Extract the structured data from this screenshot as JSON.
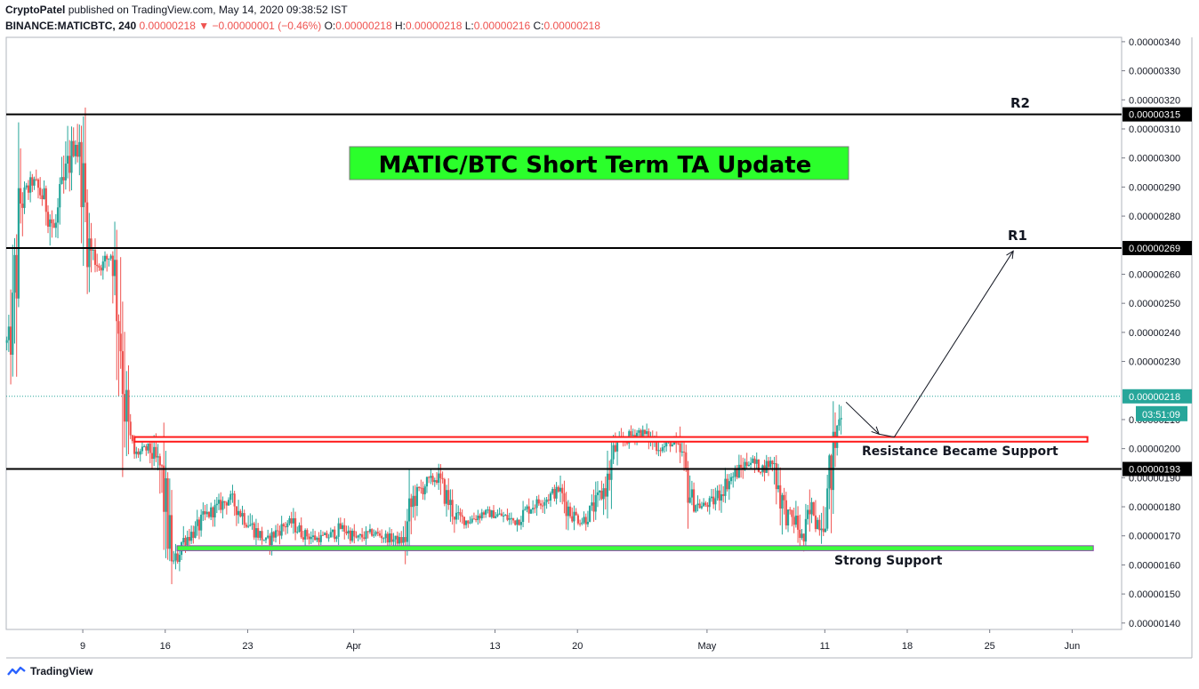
{
  "header": {
    "author": "CryptoPatel",
    "published_text": "published on TradingView.com, May 14, 2020 09:38:52 IST",
    "symbol": "BINANCE:MATICBTC, 240",
    "last_price": "0.00000218",
    "change": "−0.00000001 (−0.46%)",
    "o_label": "O:",
    "o_value": "0.00000218",
    "h_label": "H:",
    "h_value": "0.00000218",
    "l_label": "L:",
    "l_value": "0.00000216",
    "c_label": "C:",
    "c_value": "0.00000218"
  },
  "footer": {
    "brand": "TradingView"
  },
  "colors": {
    "up": "#26a69a",
    "down": "#ef5350",
    "title_bg": "#2bff2b",
    "support_bg": "#3dff3d",
    "resistance": "#ff1a1a"
  },
  "chart_data": {
    "type": "candlestick",
    "title": "MATIC/BTC Short Term TA Update",
    "y_ticks": [
      {
        "value": 340,
        "label": "0.00000340"
      },
      {
        "value": 330,
        "label": "0.00000330"
      },
      {
        "value": 320,
        "label": "0.00000320"
      },
      {
        "value": 310,
        "label": "0.00000310"
      },
      {
        "value": 300,
        "label": "0.00000300"
      },
      {
        "value": 290,
        "label": "0.00000290"
      },
      {
        "value": 280,
        "label": "0.00000280"
      },
      {
        "value": 260,
        "label": "0.00000260"
      },
      {
        "value": 250,
        "label": "0.00000250"
      },
      {
        "value": 240,
        "label": "0.00000240"
      },
      {
        "value": 230,
        "label": "0.00000230"
      },
      {
        "value": 210,
        "label": "0.00000210"
      },
      {
        "value": 200,
        "label": "0.00000200"
      },
      {
        "value": 190,
        "label": "0.00000190"
      },
      {
        "value": 180,
        "label": "0.00000180"
      },
      {
        "value": 170,
        "label": "0.00000170"
      },
      {
        "value": 160,
        "label": "0.00000160"
      },
      {
        "value": 150,
        "label": "0.00000150"
      },
      {
        "value": 140,
        "label": "0.00000140"
      }
    ],
    "x_ticks": [
      {
        "day": 9,
        "label": "9"
      },
      {
        "day": 16,
        "label": "16"
      },
      {
        "day": 23,
        "label": "23"
      },
      {
        "day": 32,
        "label": "Apr"
      },
      {
        "day": 44,
        "label": "13"
      },
      {
        "day": 51,
        "label": "20"
      },
      {
        "day": 62,
        "label": "May"
      },
      {
        "day": 72,
        "label": "11"
      },
      {
        "day": 79,
        "label": "18"
      },
      {
        "day": 86,
        "label": "25"
      },
      {
        "day": 93,
        "label": "Jun"
      }
    ],
    "x_range": [
      2.5,
      97.2
    ],
    "y_range": [
      137.8,
      341.5
    ],
    "price_anchors": [
      [
        2.5,
        236
      ],
      [
        3.0,
        240
      ],
      [
        3.7,
        285
      ],
      [
        4.8,
        292
      ],
      [
        5.8,
        285
      ],
      [
        6.6,
        275
      ],
      [
        7.8,
        298
      ],
      [
        8.4,
        306
      ],
      [
        8.9,
        295
      ],
      [
        9.5,
        270
      ],
      [
        10.5,
        262
      ],
      [
        11.5,
        268
      ],
      [
        12.2,
        240
      ],
      [
        12.8,
        205
      ],
      [
        13.4,
        198
      ],
      [
        14.6,
        200
      ],
      [
        15.6,
        193
      ],
      [
        16.3,
        170
      ],
      [
        16.7,
        160
      ],
      [
        17.4,
        168
      ],
      [
        18.6,
        172
      ],
      [
        19.5,
        177
      ],
      [
        20.5,
        180
      ],
      [
        21.5,
        183
      ],
      [
        22.6,
        177
      ],
      [
        23.6,
        172
      ],
      [
        24.6,
        168
      ],
      [
        25.6,
        172
      ],
      [
        26.6,
        175
      ],
      [
        27.6,
        171
      ],
      [
        28.8,
        169
      ],
      [
        30.0,
        170
      ],
      [
        31.0,
        173
      ],
      [
        32.2,
        169
      ],
      [
        33.6,
        171
      ],
      [
        35.2,
        169
      ],
      [
        36.3,
        168
      ],
      [
        37.0,
        182
      ],
      [
        38.1,
        188
      ],
      [
        39.1,
        190
      ],
      [
        40.6,
        177
      ],
      [
        41.7,
        175
      ],
      [
        43.0,
        178
      ],
      [
        44.5,
        177
      ],
      [
        45.7,
        175
      ],
      [
        47.0,
        180
      ],
      [
        48.4,
        183
      ],
      [
        49.4,
        186
      ],
      [
        50.4,
        178
      ],
      [
        51.4,
        175
      ],
      [
        52.6,
        181
      ],
      [
        53.5,
        188
      ],
      [
        54.2,
        200
      ],
      [
        55.0,
        203
      ],
      [
        56.2,
        206
      ],
      [
        57.3,
        203
      ],
      [
        58.1,
        200
      ],
      [
        58.9,
        202
      ],
      [
        59.8,
        198
      ],
      [
        60.7,
        182
      ],
      [
        61.5,
        180
      ],
      [
        62.6,
        182
      ],
      [
        63.6,
        188
      ],
      [
        64.6,
        192
      ],
      [
        65.6,
        196
      ],
      [
        66.6,
        193
      ],
      [
        67.6,
        196
      ],
      [
        68.6,
        178
      ],
      [
        69.5,
        175
      ],
      [
        70.2,
        168
      ],
      [
        70.9,
        180
      ],
      [
        71.6,
        173
      ],
      [
        72.2,
        183
      ],
      [
        72.8,
        200
      ],
      [
        73.5,
        218
      ]
    ],
    "last_price": 218,
    "last_price_label": "0.00000218",
    "countdown_label": "03:51:09",
    "levels": [
      {
        "name": "R2",
        "value": 315,
        "label": "0.00000315"
      },
      {
        "name": "R1",
        "value": 269,
        "label": "0.00000269"
      },
      {
        "name": "",
        "value": 193,
        "label": "0.00000193"
      }
    ],
    "resistance_zone": {
      "x_from": 13.4,
      "x_to": 94.3,
      "y_low": 202.4,
      "y_high": 204.0,
      "label": "Resistance Became Support"
    },
    "support_zone": {
      "x_from": 17.0,
      "x_to": 94.8,
      "y_low": 164.9,
      "y_high": 166.6,
      "label": "Strong Support"
    },
    "projection_path": [
      [
        73.8,
        216
      ],
      [
        76.6,
        205
      ],
      [
        77.9,
        204
      ],
      [
        88.0,
        268
      ]
    ],
    "annotations": {
      "r2_label": "R2",
      "r1_label": "R1"
    }
  }
}
